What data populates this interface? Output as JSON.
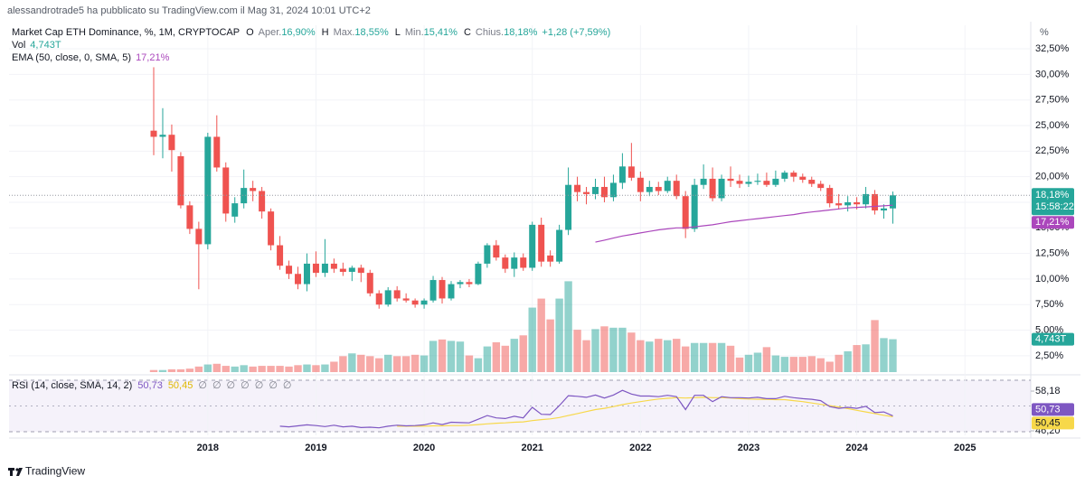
{
  "header": {
    "publisher": "alessandrotrade5 ha pubblicato su TradingView.com il Mag 31, 2024 10:01 UTC+2"
  },
  "footer": {
    "brand": "TradingView"
  },
  "chart_data": {
    "type": "candlestick",
    "title": "Market Cap ETH Dominance, %, 1M, CRYPTOCAP",
    "ohlc_legend": [
      {
        "key": "O",
        "label": "Aper.",
        "value": "16,90%"
      },
      {
        "key": "H",
        "label": "Max.",
        "value": "18,55%"
      },
      {
        "key": "L",
        "label": "Min.",
        "value": "15,41%"
      },
      {
        "key": "C",
        "label": "Chius.",
        "value": "18,18%"
      }
    ],
    "change": "+1,28 (+7,59%)",
    "colors": {
      "up": "#26a69a",
      "down": "#ef5350"
    },
    "open": [
      24.5,
      23.9,
      24.1,
      22.0,
      17.2,
      14.9,
      13.4,
      23.9,
      20.9,
      16.1,
      17.4,
      18.9,
      18.6,
      16.6,
      13.3,
      11.3,
      10.5,
      9.5,
      11.5,
      10.6,
      11.5,
      11.0,
      10.7,
      11.1,
      10.6,
      8.6,
      7.5,
      8.9,
      8.1,
      7.9,
      7.5,
      7.9,
      9.9,
      8.1,
      9.5,
      9.7,
      9.5,
      11.5,
      13.3,
      12.1,
      11.0,
      12.1,
      11.1,
      15.3,
      12.3,
      11.7,
      14.8,
      19.2,
      18.5,
      18.3,
      19.0,
      18.0,
      19.4,
      21.0,
      19.9,
      18.5,
      19.0,
      18.6,
      19.6,
      18.1,
      14.9,
      19.2,
      19.8,
      17.9,
      19.8,
      19.6,
      19.3,
      19.5,
      19.6,
      19.2,
      19.8,
      20.4,
      20.0,
      19.7,
      19.3,
      18.9,
      17.4,
      17.2,
      17.5,
      17.3,
      18.3,
      16.7,
      16.9
    ],
    "high": [
      30.7,
      26.7,
      25.1,
      22.4,
      17.6,
      15.6,
      24.3,
      26.0,
      21.4,
      18.0,
      20.7,
      19.6,
      19.0,
      16.9,
      14.2,
      11.8,
      11.2,
      12.5,
      12.7,
      13.9,
      12.0,
      11.6,
      11.3,
      11.4,
      10.9,
      8.9,
      9.2,
      9.3,
      8.6,
      8.1,
      8.1,
      10.3,
      10.2,
      9.8,
      9.9,
      10.0,
      11.7,
      13.5,
      13.8,
      12.4,
      12.6,
      12.5,
      15.6,
      16.0,
      12.8,
      15.3,
      20.9,
      20.0,
      19.0,
      19.8,
      20.0,
      20.2,
      22.3,
      23.3,
      20.5,
      19.6,
      19.5,
      20.0,
      20.2,
      18.6,
      19.8,
      21.2,
      20.9,
      20.2,
      21.0,
      20.2,
      20.1,
      20.3,
      20.4,
      20.6,
      20.6,
      20.6,
      20.3,
      20.0,
      19.6,
      19.2,
      18.3,
      18.1,
      18.0,
      19.0,
      18.7,
      17.3,
      18.55
    ],
    "low": [
      22.1,
      21.8,
      20.5,
      16.9,
      14.4,
      9.0,
      12.9,
      20.5,
      15.6,
      15.5,
      16.9,
      17.6,
      15.9,
      12.8,
      10.9,
      10.0,
      9.0,
      8.8,
      10.2,
      10.2,
      10.6,
      10.3,
      9.8,
      9.7,
      8.3,
      7.1,
      7.3,
      7.8,
      7.7,
      7.2,
      7.1,
      7.7,
      7.6,
      7.9,
      9.1,
      9.2,
      9.4,
      11.1,
      11.8,
      10.6,
      10.2,
      10.8,
      10.8,
      11.2,
      11.2,
      11.5,
      14.3,
      17.6,
      17.3,
      17.8,
      17.5,
      17.6,
      18.8,
      19.6,
      17.6,
      18.1,
      18.2,
      18.4,
      17.8,
      14.0,
      14.6,
      18.8,
      17.6,
      17.6,
      19.0,
      18.9,
      19.0,
      19.2,
      19.0,
      19.0,
      19.5,
      19.5,
      19.4,
      19.0,
      18.6,
      17.0,
      16.8,
      16.6,
      16.8,
      16.9,
      16.3,
      15.9,
      15.41
    ],
    "close": [
      23.9,
      24.1,
      22.6,
      17.2,
      14.9,
      13.4,
      23.9,
      20.9,
      16.4,
      17.4,
      18.9,
      18.6,
      16.6,
      13.3,
      11.3,
      10.5,
      9.5,
      11.5,
      10.6,
      11.5,
      11.0,
      10.7,
      11.1,
      10.6,
      8.6,
      7.5,
      8.9,
      8.1,
      7.9,
      7.5,
      7.9,
      9.9,
      8.1,
      9.5,
      9.7,
      9.5,
      11.5,
      13.3,
      12.1,
      11.0,
      12.1,
      11.1,
      15.3,
      11.7,
      11.7,
      14.8,
      19.2,
      18.5,
      18.3,
      19.0,
      18.0,
      19.4,
      21.0,
      19.9,
      18.5,
      19.0,
      18.6,
      19.6,
      18.1,
      14.9,
      19.2,
      19.8,
      17.9,
      19.8,
      19.6,
      19.3,
      19.5,
      19.6,
      19.2,
      19.8,
      20.4,
      20.0,
      19.7,
      19.3,
      18.9,
      17.4,
      17.2,
      17.5,
      17.3,
      18.3,
      16.7,
      16.9,
      18.18
    ],
    "close_last_label": "18,18%",
    "countdown": "15:58:22",
    "xlim": [
      -16.05,
      97.3
    ],
    "xticks": [
      {
        "value": 6,
        "label": "2018"
      },
      {
        "value": 18,
        "label": "2019"
      },
      {
        "value": 30,
        "label": "2020"
      },
      {
        "value": 42,
        "label": "2021"
      },
      {
        "value": 54,
        "label": "2022"
      },
      {
        "value": 66,
        "label": "2023"
      },
      {
        "value": 78,
        "label": "2024"
      },
      {
        "value": 90,
        "label": "2025"
      }
    ],
    "ylim": [
      0.9,
      34.8
    ],
    "y_unit": "%",
    "yticks": [
      {
        "value": 2.5,
        "label": "2,50%"
      },
      {
        "value": 5,
        "label": "5,00%"
      },
      {
        "value": 7.5,
        "label": "7,50%"
      },
      {
        "value": 10,
        "label": "10,00%"
      },
      {
        "value": 12.5,
        "label": "12,50%"
      },
      {
        "value": 15,
        "label": "15,00%"
      },
      {
        "value": 17.5,
        "label": "17,50%"
      },
      {
        "value": 20,
        "label": "20,00%"
      },
      {
        "value": 22.5,
        "label": "22,50%"
      },
      {
        "value": 25,
        "label": "25,00%"
      },
      {
        "value": 27.5,
        "label": "27,50%"
      },
      {
        "value": 30,
        "label": "30,00%"
      },
      {
        "value": 32.5,
        "label": "32,50%"
      }
    ],
    "grid": true,
    "volume": {
      "name": "Vol",
      "ylim": [
        0,
        50
      ],
      "values": [
        0.3,
        0.3,
        0.4,
        0.4,
        0.5,
        0.8,
        1.1,
        1.2,
        0.9,
        0.8,
        1.0,
        0.8,
        0.9,
        0.9,
        0.9,
        0.8,
        1.0,
        1.1,
        1.0,
        1.1,
        1.5,
        2.3,
        2.7,
        2.5,
        2.3,
        2.0,
        2.5,
        2.3,
        2.3,
        2.5,
        2.4,
        4.5,
        4.7,
        4.5,
        4.4,
        2.4,
        2.0,
        3.7,
        4.3,
        3.8,
        4.8,
        5.3,
        9.3,
        10.6,
        7.6,
        10.6,
        13.1,
        6.1,
        4.6,
        6.2,
        6.6,
        6.4,
        6.4,
        5.7,
        4.6,
        4.4,
        4.8,
        4.6,
        4.8,
        3.7,
        4.2,
        4.2,
        4.2,
        4.2,
        3.8,
        2.1,
        2.5,
        2.8,
        3.6,
        2.4,
        2.2,
        2.2,
        2.2,
        2.3,
        2.0,
        1.5,
        2.5,
        3.0,
        3.9,
        4.0,
        7.5,
        4.9,
        4.743
      ],
      "last_label": "4,743T"
    },
    "ema": {
      "name": "EMA (50, close, 0, SMA, 5)",
      "color": "#ab47bc",
      "values": [
        null,
        null,
        null,
        null,
        null,
        null,
        null,
        null,
        null,
        null,
        null,
        null,
        null,
        null,
        null,
        null,
        null,
        null,
        null,
        null,
        null,
        null,
        null,
        null,
        null,
        null,
        null,
        null,
        null,
        null,
        null,
        null,
        null,
        null,
        null,
        null,
        null,
        null,
        null,
        null,
        null,
        null,
        null,
        null,
        null,
        null,
        null,
        null,
        null,
        13.6,
        13.8,
        14.0,
        14.2,
        14.35,
        14.5,
        14.65,
        14.8,
        14.9,
        15.0,
        15.0,
        15.1,
        15.2,
        15.3,
        15.45,
        15.6,
        15.7,
        15.8,
        15.9,
        16.0,
        16.1,
        16.2,
        16.3,
        16.45,
        16.55,
        16.65,
        16.75,
        16.85,
        16.95,
        17.0,
        17.05,
        17.1,
        17.15,
        17.21
      ],
      "last_label": "17,21%"
    },
    "rsi": {
      "name": "RSI (14, close, SMA, 14, 2)",
      "color": "#7e57c2",
      "ma_color": "#f7d84a",
      "ylim": [
        44.85,
        62.0
      ],
      "yticks": [
        {
          "value": 58.18,
          "label": "58,18"
        },
        {
          "value": 46.2,
          "label": "46,20"
        }
      ],
      "values": [
        null,
        null,
        null,
        null,
        null,
        null,
        null,
        null,
        null,
        null,
        null,
        null,
        null,
        null,
        47.6,
        47.4,
        47.7,
        48.0,
        47.8,
        47.5,
        47.9,
        47.4,
        47.6,
        47.2,
        47.3,
        47.1,
        47.6,
        47.9,
        47.7,
        47.8,
        48.0,
        48.6,
        48.1,
        48.8,
        48.7,
        48.6,
        49.7,
        50.8,
        50.1,
        49.9,
        50.6,
        50.1,
        53.3,
        51.2,
        51.1,
        53.8,
        56.8,
        56.6,
        56.3,
        57.0,
        56.1,
        57.0,
        58.4,
        57.3,
        56.7,
        56.7,
        56.5,
        56.9,
        56.5,
        52.6,
        56.9,
        56.9,
        55.0,
        56.5,
        56.2,
        56.2,
        56.1,
        56.3,
        55.9,
        55.9,
        56.6,
        56.2,
        55.9,
        55.7,
        55.3,
        53.5,
        53.0,
        53.3,
        53.0,
        53.6,
        51.7,
        51.9,
        50.73
      ],
      "last_label": "50,73",
      "ma_values": [
        null,
        null,
        null,
        null,
        null,
        null,
        null,
        null,
        null,
        null,
        null,
        null,
        null,
        null,
        null,
        null,
        null,
        null,
        null,
        null,
        null,
        null,
        null,
        null,
        null,
        null,
        null,
        47.6,
        47.6,
        47.6,
        47.6,
        47.7,
        47.7,
        47.8,
        47.8,
        47.9,
        48.1,
        48.3,
        48.5,
        48.6,
        48.8,
        48.9,
        49.3,
        49.6,
        49.8,
        50.2,
        50.8,
        51.4,
        52.0,
        52.6,
        53.0,
        53.5,
        54.1,
        54.6,
        55.0,
        55.4,
        55.8,
        56.0,
        56.2,
        56.1,
        56.2,
        56.3,
        56.2,
        56.2,
        56.1,
        55.9,
        55.8,
        55.7,
        55.7,
        55.6,
        55.6,
        55.3,
        55.0,
        54.6,
        54.2,
        53.8,
        53.4,
        52.9,
        52.4,
        51.9,
        51.4,
        50.9,
        50.45
      ],
      "ma_last_label": "50,45",
      "placeholders": [
        "∅",
        "∅",
        "∅",
        "∅",
        "∅",
        "∅",
        "∅"
      ]
    }
  }
}
